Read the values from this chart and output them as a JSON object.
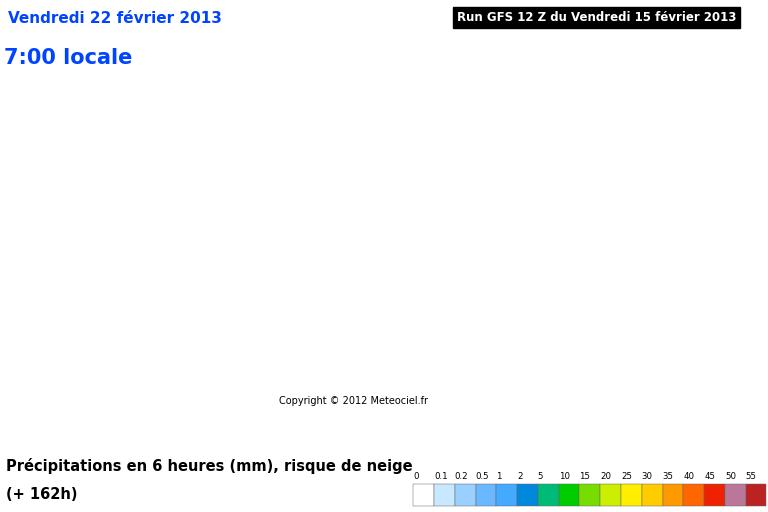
{
  "title_left_line1": "Vendredi 22 février 2013",
  "title_left_line2": "7:00 locale",
  "title_right": "Run GFS 12 Z du Vendredi 15 février 2013",
  "bottom_label_line1": "Précipitations en 6 heures (mm), risque de neige",
  "bottom_label_line2": "(+ 162h)",
  "copyright": "Copyright © 2012 Meteociel.fr",
  "colorbar_values": [
    "0",
    "0.1",
    "0.2",
    "0.5",
    "1",
    "2",
    "5",
    "10",
    "15",
    "20",
    "25",
    "30",
    "35",
    "40",
    "45",
    "50",
    "55"
  ],
  "colorbar_colors": [
    "#ffffff",
    "#c8e8ff",
    "#99d0ff",
    "#6ab8ff",
    "#44aaff",
    "#0088dd",
    "#00bb77",
    "#00cc00",
    "#77dd00",
    "#ccee00",
    "#ffee00",
    "#ffcc00",
    "#ff9900",
    "#ff6600",
    "#ee2200",
    "#bb7799",
    "#bb2222"
  ],
  "map_bg_color": "#aaccee",
  "ocean_hatch_color": "#b8d8f0",
  "land_color": "#e8e8e8",
  "title_left_color1": "#0044ff",
  "title_left_color2": "#0044ff",
  "title_right_bg": "#000000",
  "title_right_color": "#ffffff",
  "bottom_bg_color": "#ffffff",
  "bottom_label_color": "#000000",
  "extent": [
    -80,
    42,
    24,
    82
  ],
  "figsize": [
    7.68,
    5.12
  ],
  "dpi": 100
}
